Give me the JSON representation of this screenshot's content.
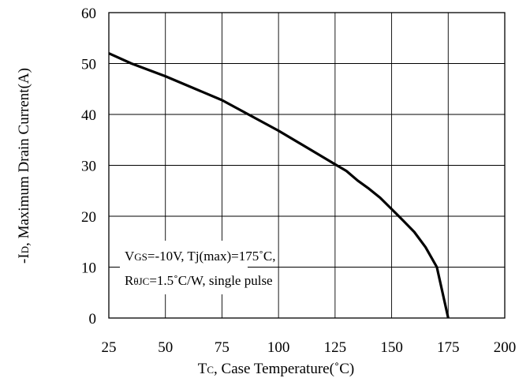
{
  "chart_data": {
    "type": "line",
    "title": "",
    "xlabel": {
      "main": "T",
      "sub": "C",
      "rest": ", Case Temperature(˚C)"
    },
    "ylabel": {
      "prefix": "-I",
      "sub": "D",
      "rest": ", Maximum Drain Current(A)"
    },
    "xlim": [
      25,
      200
    ],
    "ylim": [
      0,
      60
    ],
    "x_ticks": [
      25,
      50,
      75,
      100,
      125,
      150,
      175,
      200
    ],
    "y_ticks": [
      0,
      10,
      20,
      30,
      40,
      50,
      60
    ],
    "grid": true,
    "series": [
      {
        "color": "#000000",
        "points": [
          [
            25,
            52.0
          ],
          [
            35,
            50.0
          ],
          [
            50,
            47.5
          ],
          [
            75,
            42.8
          ],
          [
            100,
            36.8
          ],
          [
            125,
            30.2
          ],
          [
            130,
            28.9
          ],
          [
            135,
            27.0
          ],
          [
            140,
            25.4
          ],
          [
            145,
            23.6
          ],
          [
            150,
            21.4
          ],
          [
            155,
            19.2
          ],
          [
            160,
            16.9
          ],
          [
            165,
            13.9
          ],
          [
            170,
            10.0
          ],
          [
            175,
            0.0
          ]
        ]
      }
    ],
    "annotation": {
      "line1": {
        "v": "V",
        "gs": "GS",
        "rest": "=-10V, Tj(max)=175˚C,"
      },
      "line2": {
        "r": "R",
        "sub": "θJC",
        "rest": "=1.5˚C/W, single pulse"
      }
    }
  }
}
